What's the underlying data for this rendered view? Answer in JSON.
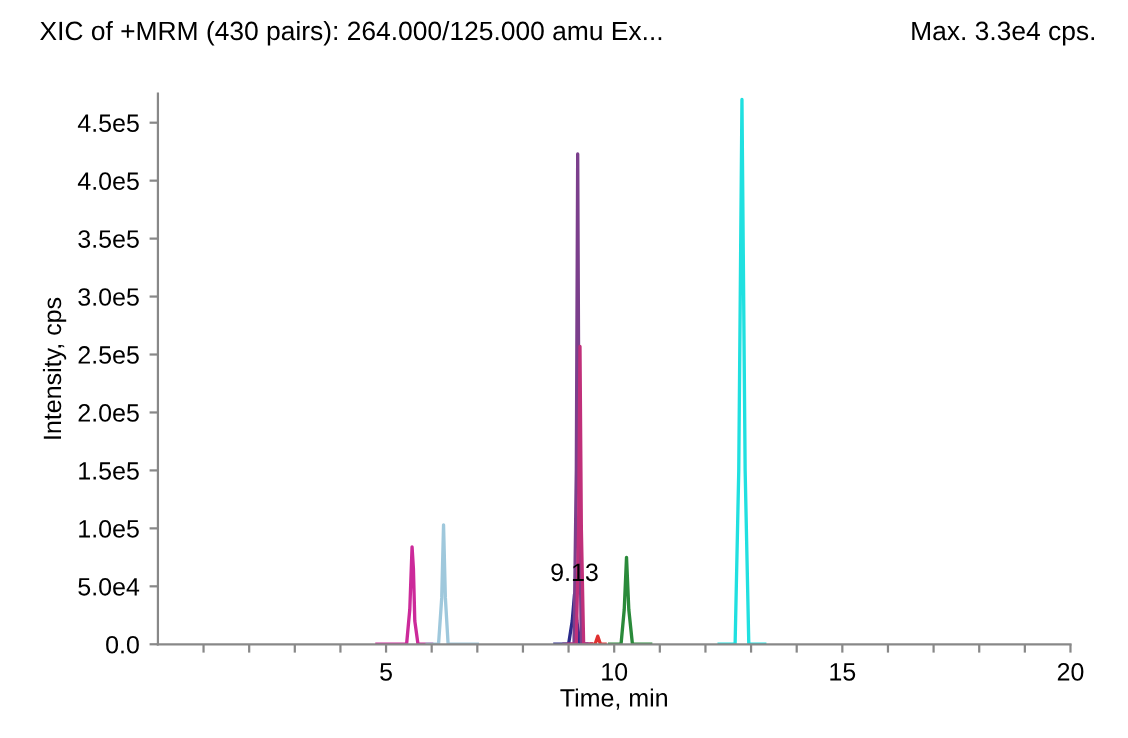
{
  "chart_data": {
    "type": "line",
    "title": "XIC of +MRM (430 pairs): 264.000/125.000 amu Ex...",
    "xlabel": "Time, min",
    "ylabel": "Intensity, cps",
    "annotations": [
      "Max. 3.3e4 cps.",
      {
        "text": "9.13",
        "x": 9.13,
        "y": 43000
      }
    ],
    "series": [
      {
        "color": "#cc2a9a",
        "x": [
          4.8,
          5.45,
          5.52,
          5.57,
          5.6,
          5.63,
          5.7,
          6.0
        ],
        "values": [
          0,
          0,
          30000,
          84000,
          65000,
          20000,
          0,
          0
        ]
      },
      {
        "color": "#9fc8dc",
        "x": [
          5.9,
          6.15,
          6.22,
          6.26,
          6.3,
          6.36,
          7.0
        ],
        "values": [
          0,
          0,
          40000,
          103000,
          40000,
          0,
          0
        ]
      },
      {
        "color": "#2a2a8a",
        "x": [
          8.7,
          9.0,
          9.08,
          9.13,
          9.18,
          9.25,
          9.4
        ],
        "values": [
          0,
          0,
          20000,
          43000,
          20000,
          0,
          0
        ]
      },
      {
        "color": "#7b3f8c",
        "x": [
          8.9,
          9.12,
          9.17,
          9.2,
          9.23,
          9.28,
          9.5
        ],
        "values": [
          0,
          0,
          150000,
          423000,
          150000,
          0,
          0
        ]
      },
      {
        "color": "#c0307a",
        "x": [
          9.0,
          9.17,
          9.22,
          9.25,
          9.28,
          9.33,
          9.5
        ],
        "values": [
          0,
          0,
          100000,
          257000,
          100000,
          0,
          0
        ]
      },
      {
        "color": "#e03030",
        "x": [
          9.5,
          9.58,
          9.64,
          9.7,
          9.8
        ],
        "values": [
          0,
          0,
          7000,
          0,
          0
        ]
      },
      {
        "color": "#2a8a3a",
        "x": [
          9.9,
          10.15,
          10.22,
          10.27,
          10.32,
          10.4,
          10.8
        ],
        "values": [
          0,
          0,
          30000,
          75000,
          30000,
          0,
          0
        ]
      },
      {
        "color": "#20e0e0",
        "x": [
          12.3,
          12.65,
          12.73,
          12.8,
          12.87,
          12.95,
          13.3
        ],
        "values": [
          0,
          0,
          150000,
          470000,
          150000,
          0,
          0
        ]
      }
    ],
    "xlim": [
      0,
      20
    ],
    "ylim": [
      0,
      475000
    ],
    "xticks": [
      {
        "value": 1,
        "label": null
      },
      {
        "value": 2,
        "label": null
      },
      {
        "value": 3,
        "label": null
      },
      {
        "value": 4,
        "label": null
      },
      5,
      {
        "value": 6,
        "label": null
      },
      {
        "value": 7,
        "label": null
      },
      {
        "value": 8,
        "label": null
      },
      {
        "value": 9,
        "label": null
      },
      10,
      {
        "value": 11,
        "label": null
      },
      {
        "value": 12,
        "label": null
      },
      {
        "value": 13,
        "label": null
      },
      {
        "value": 14,
        "label": null
      },
      15,
      {
        "value": 16,
        "label": null
      },
      {
        "value": 17,
        "label": null
      },
      {
        "value": 18,
        "label": null
      },
      {
        "value": 19,
        "label": null
      },
      20
    ],
    "yticks": [
      {
        "value": 0,
        "label": "0.0"
      },
      {
        "value": 50000,
        "label": "5.0e4"
      },
      {
        "value": 100000,
        "label": "1.0e5"
      },
      {
        "value": 150000,
        "label": "1.5e5"
      },
      {
        "value": 200000,
        "label": "2.0e5"
      },
      {
        "value": 250000,
        "label": "2.5e5"
      },
      {
        "value": 300000,
        "label": "3.0e5"
      },
      {
        "value": 350000,
        "label": "3.5e5"
      },
      {
        "value": 400000,
        "label": "4.0e5"
      },
      {
        "value": 450000,
        "label": "4.5e5"
      }
    ],
    "grid": false,
    "legend": false
  }
}
